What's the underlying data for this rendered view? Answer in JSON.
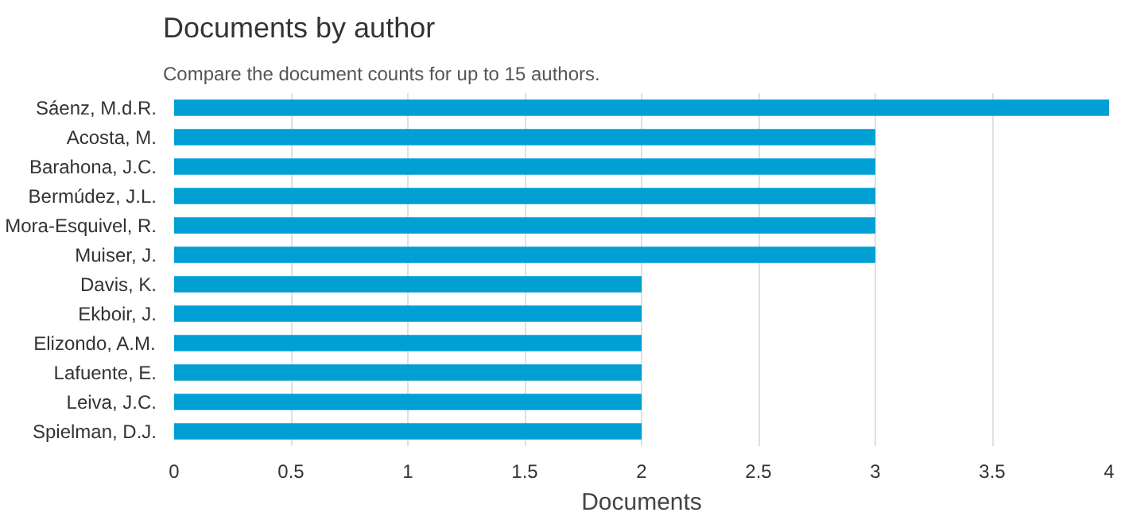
{
  "chart_data": {
    "type": "bar",
    "orientation": "horizontal",
    "title": "Documents by author",
    "subtitle": "Compare the document counts for up to 15 authors.",
    "xlabel": "Documents",
    "categories": [
      "Sáenz, M.d.R.",
      "Acosta, M.",
      "Barahona, J.C.",
      "Bermúdez, J.L.",
      "Mora-Esquivel, R.",
      "Muiser, J.",
      "Davis, K.",
      "Ekboir, J.",
      "Elizondo, A.M.",
      "Lafuente, E.",
      "Leiva, J.C.",
      "Spielman, D.J."
    ],
    "values": [
      4,
      3,
      3,
      3,
      3,
      3,
      2,
      2,
      2,
      2,
      2,
      2
    ],
    "color": "#009fd4",
    "xlim": [
      0,
      4
    ],
    "xticks": [
      0,
      {
        "value": 0.5,
        "label": "0.5"
      },
      1,
      {
        "value": 1.5,
        "label": "1.5"
      },
      2,
      {
        "value": 2.5,
        "label": "2.5"
      },
      3,
      {
        "value": 3.5,
        "label": "3.5"
      },
      4
    ],
    "grid": "x"
  }
}
